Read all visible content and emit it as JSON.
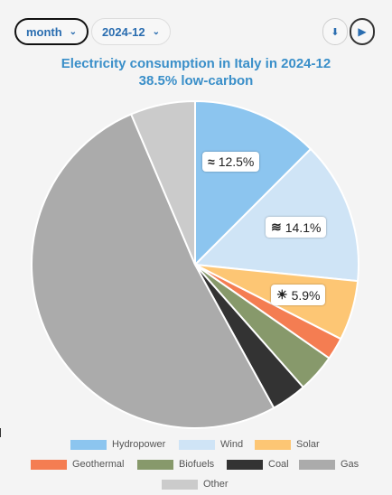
{
  "controls": {
    "month_label": "month",
    "period_label": "2024-12",
    "chevron": "⌄",
    "download_glyph": "⬇",
    "play_glyph": "▶"
  },
  "title": {
    "line1": "Electricity consumption in Italy in 2024-12",
    "line2": "38.5% low-carbon"
  },
  "chart_data": {
    "type": "pie",
    "title": "Electricity consumption in Italy in 2024-12",
    "subtitle": "38.5% low-carbon",
    "legend_position": "bottom",
    "series": [
      {
        "name": "Hydropower",
        "value": 12.5,
        "color": "#8cc5ef",
        "label": "12.5%",
        "icon": "wave-icon"
      },
      {
        "name": "Wind",
        "value": 14.1,
        "color": "#cfe4f6",
        "label": "14.1%",
        "icon": "wind-icon"
      },
      {
        "name": "Solar",
        "value": 5.9,
        "color": "#fdc674",
        "label": "5.9%",
        "icon": "sun-icon"
      },
      {
        "name": "Geothermal",
        "value": 2.2,
        "color": "#f47d52",
        "label": "",
        "icon": ""
      },
      {
        "name": "Biofuels",
        "value": 3.8,
        "color": "#87996b",
        "label": "",
        "icon": ""
      },
      {
        "name": "Coal",
        "value": 3.5,
        "color": "#333333",
        "label": "",
        "icon": ""
      },
      {
        "name": "Gas",
        "value": 51.6,
        "color": "#ababab",
        "label": "",
        "icon": ""
      },
      {
        "name": "Other",
        "value": 6.4,
        "color": "#cbcbcb",
        "label": "",
        "icon": ""
      }
    ]
  }
}
